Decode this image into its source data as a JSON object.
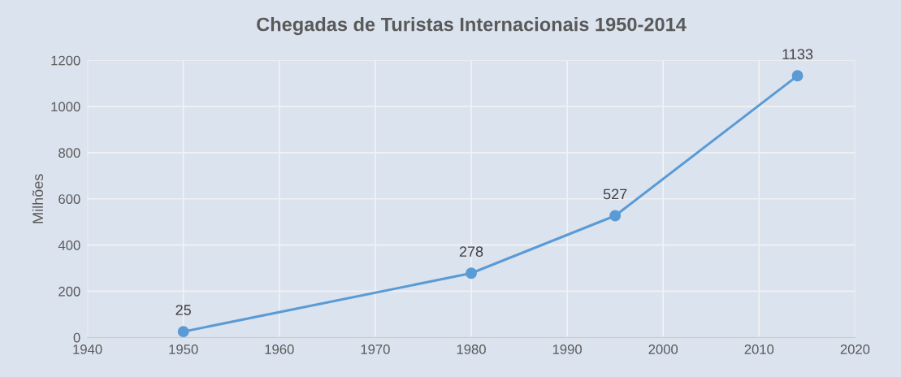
{
  "chart_data": {
    "type": "line",
    "title": "Chegadas de Turistas Internacionais 1950-2014",
    "ylabel": "Milhões",
    "x": [
      1950,
      1980,
      1995,
      2014
    ],
    "series": [
      {
        "color": "#5b9bd5",
        "values": [
          25,
          278,
          527,
          1133
        ]
      }
    ],
    "data_labels": true,
    "marker": "circle",
    "line_style": "solid",
    "xlim": [
      1940,
      2020
    ],
    "xticks": [
      1940,
      1950,
      1960,
      1970,
      1980,
      1990,
      2000,
      2010,
      2020
    ],
    "ylim": [
      0,
      1200
    ],
    "yticks": [
      0,
      200,
      400,
      600,
      800,
      1000,
      1200
    ],
    "grid": true,
    "legend": false
  }
}
